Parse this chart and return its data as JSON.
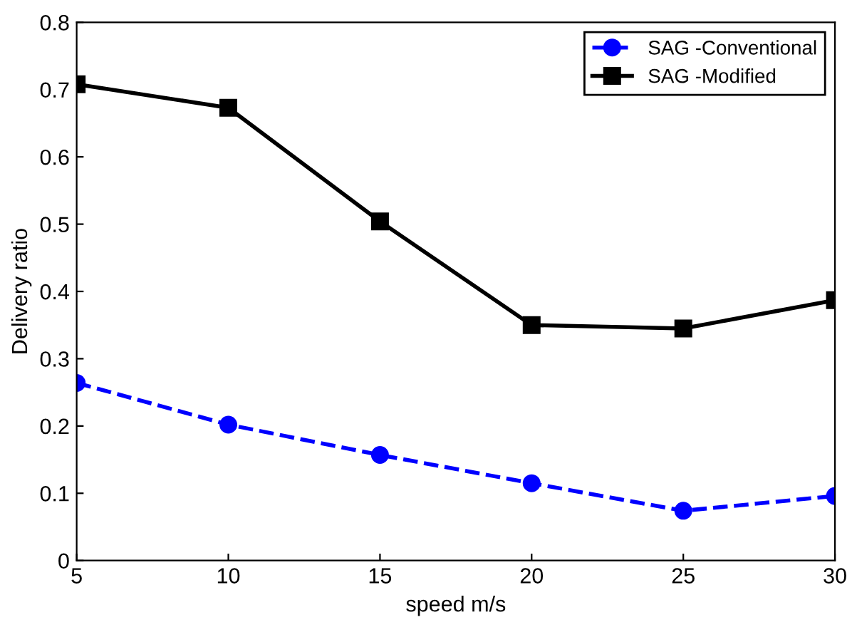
{
  "chart_data": {
    "type": "line",
    "xlabel": "speed m/s",
    "ylabel": "Delivery ratio",
    "x": [
      5,
      10,
      15,
      20,
      25,
      30
    ],
    "series": [
      {
        "name": "SAG -Conventional",
        "color": "#0000ff",
        "values": [
          0.264,
          0.202,
          0.157,
          0.115,
          0.074,
          0.096
        ],
        "marker": "circle",
        "line_style": "dashed"
      },
      {
        "name": "SAG -Modified",
        "color": "#000000",
        "values": [
          0.708,
          0.673,
          0.504,
          0.35,
          0.345,
          0.387
        ],
        "marker": "square",
        "line_style": "solid"
      }
    ],
    "xlim": [
      5,
      30
    ],
    "xticks": [
      5,
      10,
      15,
      20,
      25,
      30
    ],
    "ylim": [
      0,
      0.8
    ],
    "yticks": [
      0,
      0.1,
      0.2,
      0.3,
      0.4,
      0.5,
      0.6,
      0.7,
      0.8
    ],
    "grid": false,
    "legend": "top right"
  }
}
